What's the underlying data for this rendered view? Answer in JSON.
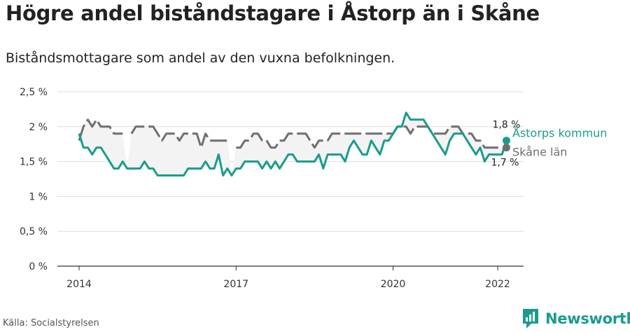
{
  "title": "Högre andel biståndstagare i Åstorp än i Skåne",
  "subtitle": "Biståndsmottagare som andel av den vuxna befolkningen.",
  "source": "Källa: Socialstyrelsen",
  "brand": "Newsworthy",
  "colors": {
    "teal": "#1a9c8c",
    "gray": "#6e6e73",
    "band": "#f3f3f3",
    "grid": "#dddddd"
  },
  "chart_data": {
    "type": "line",
    "title": "Högre andel biståndstagare i Åstorp än i Skåne",
    "xlabel": "",
    "ylabel": "",
    "x_start": "2014-01",
    "frequency": "monthly",
    "xlim": [
      "2014-01",
      "2022-12"
    ],
    "ylim": [
      0,
      2.5
    ],
    "y_ticks": [
      0,
      0.5,
      1,
      1.5,
      2,
      2.5
    ],
    "y_tick_labels": [
      "0 %",
      "0,5 %",
      "1 %",
      "1,5 %",
      "2 %",
      "2,5 %"
    ],
    "x_ticks": [
      "2014-01",
      "2017-01",
      "2020-01",
      "2022-01"
    ],
    "x_tick_labels": [
      "2014",
      "2017",
      "2020",
      "2022"
    ],
    "grid": true,
    "legend": "labels at line ends (right)",
    "series": [
      {
        "name": "Åstorps kommun",
        "color": "#1a9c8c",
        "end_label": "1,8 %",
        "values": [
          1.9,
          1.7,
          1.7,
          1.6,
          1.7,
          1.7,
          1.6,
          1.5,
          1.4,
          1.4,
          1.5,
          1.4,
          1.4,
          1.4,
          1.4,
          1.5,
          1.4,
          1.4,
          1.3,
          1.3,
          1.3,
          1.3,
          1.3,
          1.3,
          1.3,
          1.4,
          1.4,
          1.4,
          1.4,
          1.5,
          1.4,
          1.4,
          1.6,
          1.3,
          1.4,
          1.3,
          1.4,
          1.4,
          1.5,
          1.5,
          1.5,
          1.5,
          1.4,
          1.5,
          1.4,
          1.5,
          1.4,
          1.5,
          1.6,
          1.6,
          1.5,
          1.5,
          1.5,
          1.5,
          1.5,
          1.6,
          1.4,
          1.6,
          1.6,
          1.6,
          1.6,
          1.5,
          1.7,
          1.8,
          1.7,
          1.6,
          1.6,
          1.8,
          1.7,
          1.6,
          1.8,
          1.8,
          1.9,
          2.0,
          2.0,
          2.2,
          2.1,
          2.1,
          2.1,
          2.1,
          2.0,
          1.9,
          1.8,
          1.7,
          1.6,
          1.8,
          1.9,
          1.9,
          1.9,
          1.8,
          1.7,
          1.6,
          1.7,
          1.5,
          1.6,
          1.6,
          1.6,
          1.6,
          1.8
        ]
      },
      {
        "name": "Skåne län",
        "color": "#6e6e73",
        "end_label": "1,7 %",
        "values": [
          1.8,
          2.0,
          2.1,
          2.0,
          2.1,
          2.0,
          2.0,
          2.0,
          1.9,
          1.9,
          1.9,
          null,
          1.9,
          2.0,
          2.0,
          2.0,
          2.0,
          2.0,
          1.9,
          1.8,
          1.9,
          1.9,
          1.9,
          1.8,
          1.9,
          1.9,
          1.9,
          1.9,
          1.7,
          1.9,
          1.8,
          1.8,
          1.8,
          1.8,
          1.8,
          null,
          1.7,
          1.7,
          1.8,
          1.8,
          1.9,
          1.9,
          1.8,
          1.8,
          1.7,
          1.7,
          1.8,
          1.8,
          1.9,
          1.9,
          1.9,
          1.9,
          1.9,
          1.8,
          1.7,
          1.8,
          1.8,
          1.8,
          1.9,
          1.9,
          1.9,
          1.9,
          1.9,
          1.9,
          1.9,
          1.9,
          1.9,
          1.9,
          1.9,
          1.9,
          1.9,
          1.9,
          1.9,
          2.0,
          2.0,
          2.0,
          1.9,
          2.0,
          2.0,
          2.0,
          2.0,
          1.9,
          1.9,
          1.9,
          1.9,
          2.0,
          2.0,
          2.0,
          1.9,
          1.9,
          1.9,
          1.8,
          1.8,
          1.7,
          1.7,
          1.7,
          1.7,
          1.7,
          1.7
        ]
      }
    ]
  }
}
